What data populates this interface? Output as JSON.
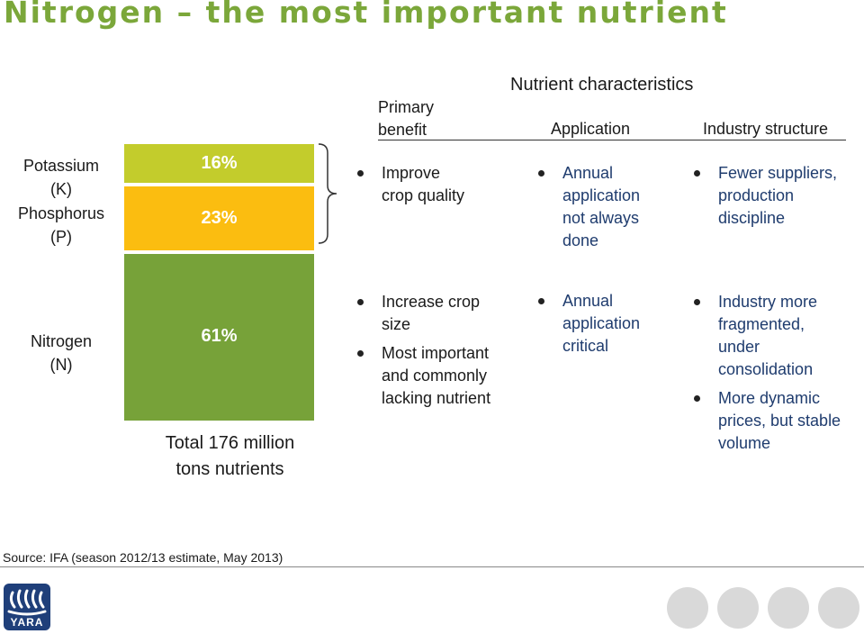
{
  "title": "Nitrogen – the most important nutrient",
  "headers": {
    "nutrient_characteristics": "Nutrient characteristics",
    "primary_benefit": [
      "Primary",
      "benefit"
    ],
    "application": "Application",
    "industry_structure": "Industry structure"
  },
  "rows": {
    "top_labels": {
      "potassium": [
        "Potassium",
        "(K)"
      ],
      "phosphorus": [
        "Phosphorus",
        "(P)"
      ]
    },
    "nitrogen_label": [
      "Nitrogen",
      "(N)"
    ]
  },
  "bar": {
    "segments": [
      {
        "name": "potassium",
        "value_text": "16%",
        "color": "#c3cc2c"
      },
      {
        "name": "phosphorus",
        "value_text": "23%",
        "color": "#fbbd10"
      },
      {
        "name": "nitrogen",
        "value_text": "61%",
        "color": "#77a239"
      }
    ],
    "total": [
      "Total 176 million",
      "tons nutrients"
    ]
  },
  "kp": {
    "benefit": [
      "Improve",
      "crop quality"
    ],
    "application": [
      "Annual",
      "application",
      "not always",
      "done"
    ],
    "industry": [
      "Fewer suppliers,",
      "production",
      "discipline"
    ]
  },
  "n": {
    "benefit": [
      [
        "Increase crop",
        "size"
      ],
      [
        "Most important",
        "and commonly",
        "lacking nutrient"
      ]
    ],
    "application": [
      "Annual",
      "application",
      "critical"
    ],
    "industry": [
      [
        "Industry more",
        "fragmented,",
        "under",
        "consolidation"
      ],
      [
        "More dynamic",
        "prices, but stable",
        "volume"
      ]
    ]
  },
  "source": "Source: IFA (season 2012/13 estimate, May 2013)",
  "logo": {
    "text": "YARA",
    "color": "#1f3f7a"
  },
  "decor": {
    "circle_color": "#d9d9d9"
  }
}
